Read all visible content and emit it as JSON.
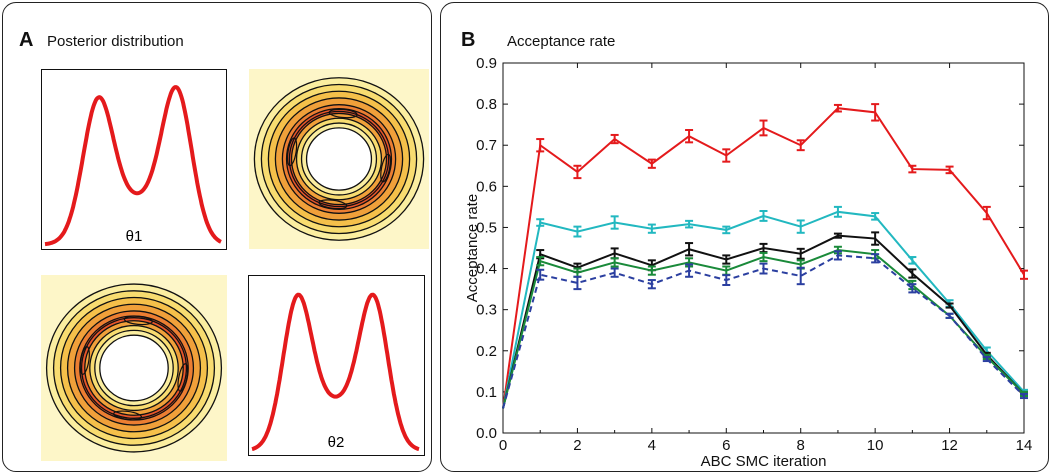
{
  "panel_a": {
    "letter": "A",
    "title": "Posterior distribution",
    "theta1_label": "θ1",
    "theta2_label": "θ2"
  },
  "panel_b": {
    "letter": "B",
    "title": "Acceptance rate"
  },
  "colors": {
    "red": "#e41a1c",
    "cyan": "#22b8c0",
    "black": "#111111",
    "green": "#1a8a3a",
    "blue_dashed": "#2b3fa0",
    "contour_fill_outer": "#fdf6c8",
    "contour_fill_inner": "#e8552a"
  },
  "chart_data": [
    {
      "type": "line",
      "title": "Acceptance rate",
      "xlabel": "ABC SMC iteration",
      "ylabel": "Acceptance rate",
      "xlim": [
        0,
        14
      ],
      "ylim": [
        0.0,
        0.9
      ],
      "xticks": [
        "0",
        "2",
        "4",
        "6",
        "8",
        "10",
        "12",
        "14"
      ],
      "yticks": [
        "0.0",
        "0.1",
        "0.2",
        "0.3",
        "0.4",
        "0.5",
        "0.6",
        "0.7",
        "0.8",
        "0.9"
      ],
      "grid": false,
      "x": [
        0,
        1,
        2,
        3,
        4,
        5,
        6,
        7,
        8,
        9,
        10,
        11,
        12,
        13,
        14
      ],
      "series": [
        {
          "color": "red",
          "dashed": false,
          "values": [
            0.06,
            0.7,
            0.635,
            0.715,
            0.655,
            0.722,
            0.675,
            0.742,
            0.7,
            0.79,
            0.78,
            0.642,
            0.64,
            0.535,
            0.385
          ],
          "errors": [
            0,
            0.015,
            0.015,
            0.01,
            0.01,
            0.015,
            0.015,
            0.018,
            0.012,
            0.008,
            0.02,
            0.008,
            0.008,
            0.015,
            0.01
          ]
        },
        {
          "color": "cyan",
          "dashed": false,
          "values": [
            0.06,
            0.512,
            0.49,
            0.512,
            0.497,
            0.508,
            0.494,
            0.528,
            0.502,
            0.538,
            0.527,
            0.42,
            0.315,
            0.2,
            0.1
          ],
          "errors": [
            0,
            0.008,
            0.012,
            0.015,
            0.01,
            0.008,
            0.008,
            0.012,
            0.015,
            0.012,
            0.008,
            0.008,
            0.008,
            0.008,
            0.005
          ]
        },
        {
          "color": "black",
          "dashed": false,
          "values": [
            0.06,
            0.435,
            0.402,
            0.437,
            0.408,
            0.447,
            0.422,
            0.45,
            0.436,
            0.48,
            0.473,
            0.388,
            0.31,
            0.19,
            0.095
          ],
          "errors": [
            0,
            0.01,
            0.01,
            0.012,
            0.012,
            0.015,
            0.01,
            0.01,
            0.012,
            0.005,
            0.015,
            0.01,
            0.005,
            0.005,
            0.005
          ]
        },
        {
          "color": "green",
          "dashed": false,
          "values": [
            0.06,
            0.418,
            0.39,
            0.415,
            0.395,
            0.415,
            0.395,
            0.428,
            0.41,
            0.445,
            0.435,
            0.36,
            0.285,
            0.185,
            0.095
          ],
          "errors": [
            0,
            0.01,
            0.01,
            0.01,
            0.01,
            0.01,
            0.01,
            0.01,
            0.01,
            0.008,
            0.01,
            0.01,
            0.005,
            0.005,
            0.005
          ]
        },
        {
          "color": "blue_dashed",
          "dashed": true,
          "values": [
            0.06,
            0.385,
            0.365,
            0.39,
            0.362,
            0.395,
            0.372,
            0.4,
            0.382,
            0.432,
            0.425,
            0.352,
            0.285,
            0.18,
            0.09
          ],
          "errors": [
            0,
            0.012,
            0.015,
            0.01,
            0.01,
            0.015,
            0.012,
            0.012,
            0.02,
            0.01,
            0.01,
            0.01,
            0.005,
            0.005,
            0.005
          ]
        }
      ]
    },
    {
      "type": "line",
      "xlabel": "θ1",
      "peaks": [
        {
          "x": 0.3,
          "height": 0.87
        },
        {
          "x": 0.75,
          "height": 0.94
        }
      ],
      "trough_height": 0.49
    },
    {
      "type": "line",
      "xlabel": "θ2",
      "peaks": [
        {
          "x": 0.27,
          "height": 0.93
        },
        {
          "x": 0.73,
          "height": 0.93
        }
      ],
      "trough_height": 0.53
    },
    {
      "type": "heatmap",
      "shape": "ring"
    },
    {
      "type": "heatmap",
      "shape": "ring"
    }
  ]
}
